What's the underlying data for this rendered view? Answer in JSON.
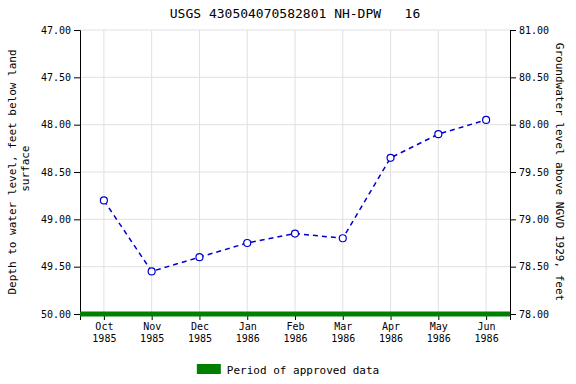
{
  "chart_data": {
    "type": "line",
    "title": "USGS 430504070582801 NH-DPW   16",
    "categories": [
      "Oct\n1985",
      "Nov\n1985",
      "Dec\n1985",
      "Jan\n1986",
      "Feb\n1986",
      "Mar\n1986",
      "Apr\n1986",
      "May\n1986",
      "Jun\n1986"
    ],
    "values": [
      48.8,
      49.55,
      49.4,
      49.25,
      49.15,
      49.2,
      48.35,
      48.1,
      47.95
    ],
    "color": "#0000cc",
    "marker": "circle",
    "line_style": "dashed",
    "ylabel": "Depth to water level, feet below land\n surface",
    "y2label": "Groundwater level above NGVD 1929, feet",
    "ylim": [
      50.0,
      47.0
    ],
    "yticks": [
      {
        "value": 47.0,
        "label": "47.00"
      },
      {
        "value": 47.5,
        "label": "47.50"
      },
      {
        "value": 48.0,
        "label": "48.00"
      },
      {
        "value": 48.5,
        "label": "48.50"
      },
      {
        "value": 49.0,
        "label": "49.00"
      },
      {
        "value": 49.5,
        "label": "49.50"
      },
      {
        "value": 50.0,
        "label": "50.00"
      }
    ],
    "y2lim": [
      78.0,
      81.0
    ],
    "y2ticks": [
      {
        "value": 81.0,
        "label": "81.00"
      },
      {
        "value": 80.5,
        "label": "80.50"
      },
      {
        "value": 80.0,
        "label": "80.00"
      },
      {
        "value": 79.5,
        "label": "79.50"
      },
      {
        "value": 79.0,
        "label": "79.00"
      },
      {
        "value": 78.5,
        "label": "78.50"
      },
      {
        "value": 78.0,
        "label": "78.00"
      }
    ],
    "reference_lines": [
      {
        "y": 50.0,
        "name": "Period of approved data",
        "color": "#008000"
      }
    ],
    "legend": "bottom",
    "grid": true
  }
}
